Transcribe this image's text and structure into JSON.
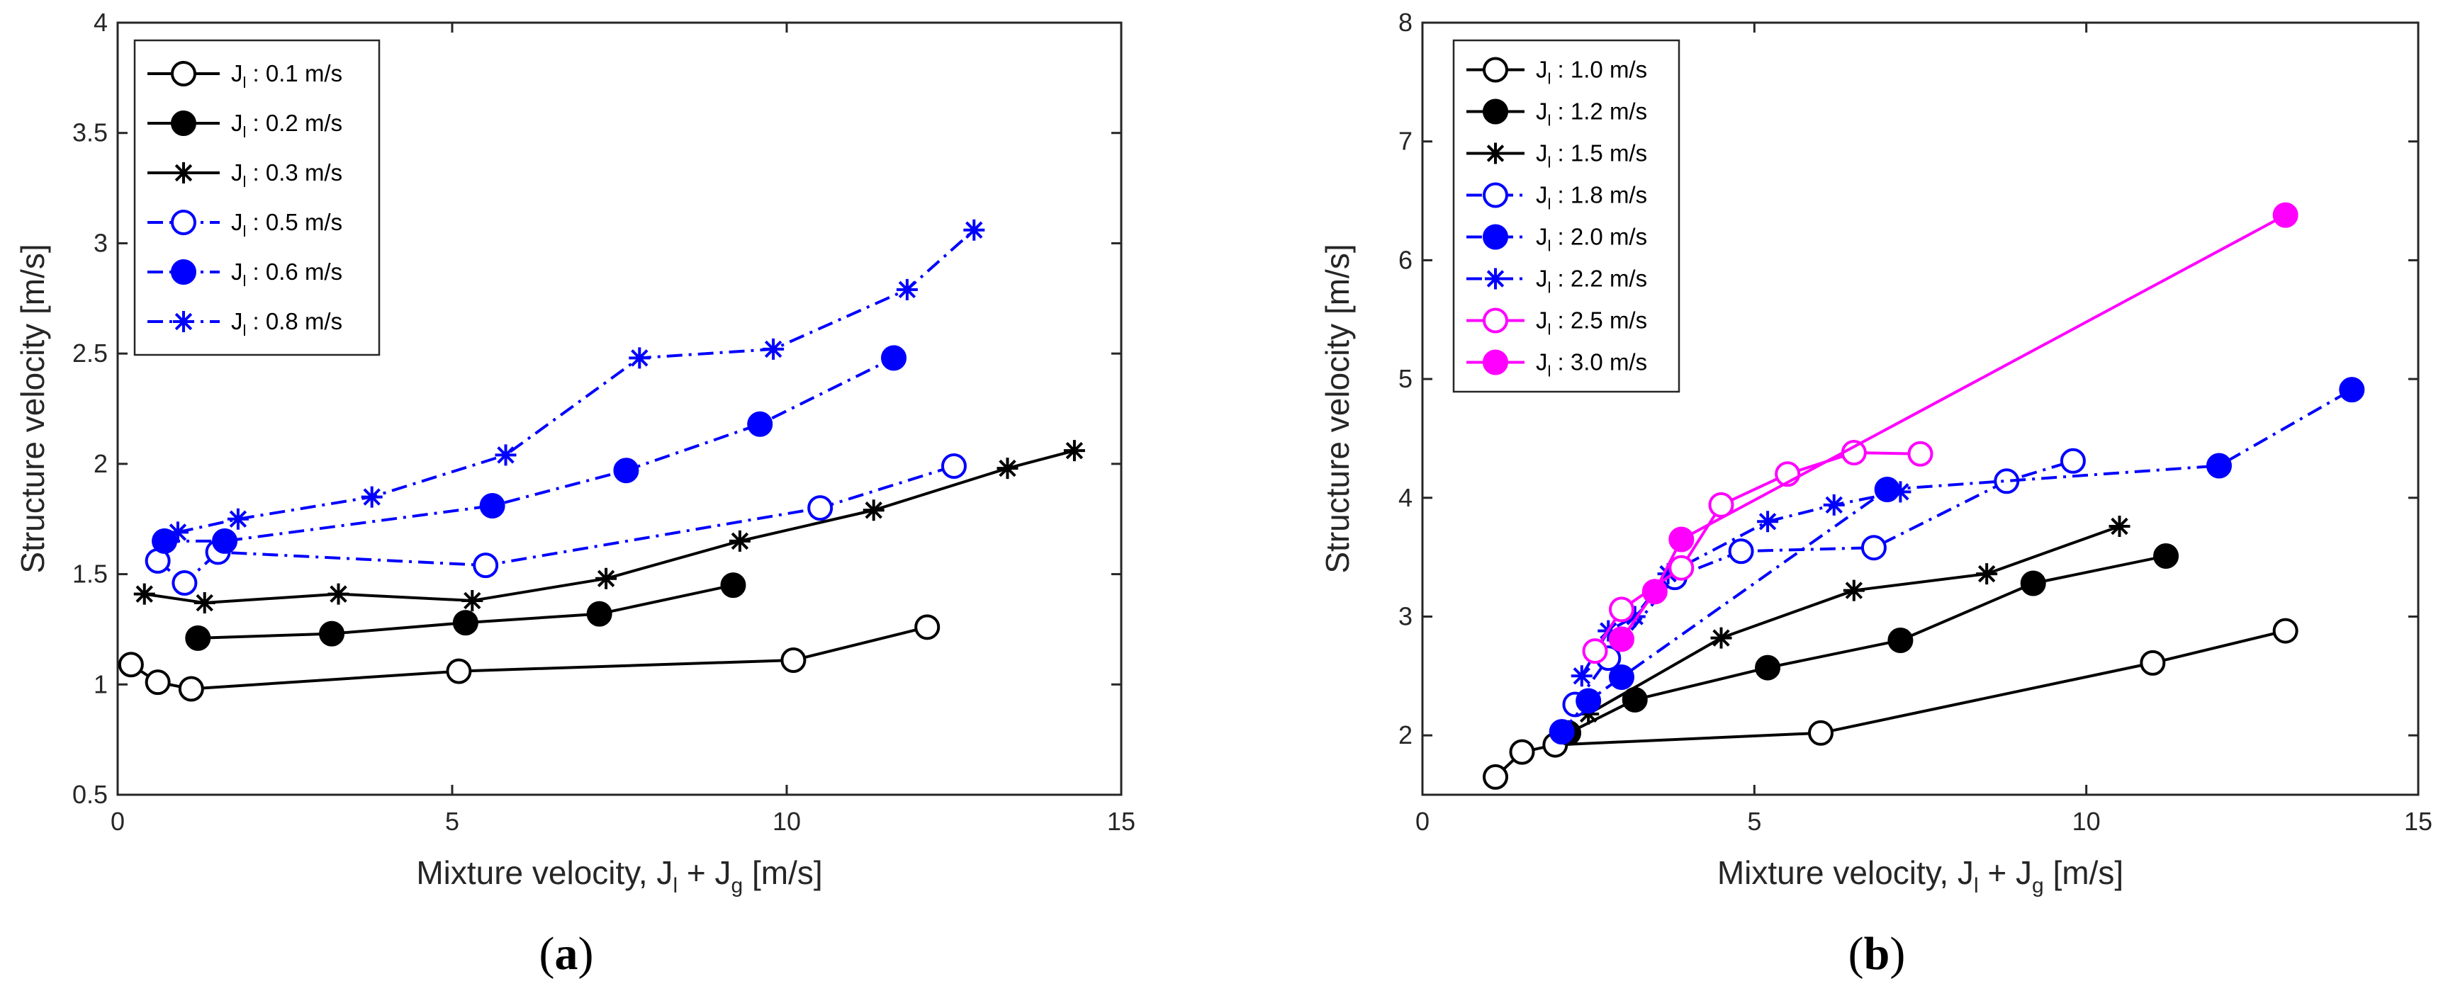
{
  "figure": {
    "panels": [
      "a",
      "b"
    ],
    "captions": [
      "a",
      "b"
    ]
  },
  "chart_data": [
    {
      "type": "line",
      "caption": "a",
      "title": "",
      "xlabel": "Mixture velocity, J_l + J_g [m/s]",
      "xlabel_parts": {
        "t1": "Mixture velocity, J",
        "s1": "l",
        "t2": " + J",
        "s2": "g",
        "t3": " [m/s]"
      },
      "ylabel": "Structure velocity [m/s]",
      "xlim": [
        0,
        15
      ],
      "ylim": [
        0.5,
        4
      ],
      "xticks": [
        "0",
        "5",
        "10",
        "15"
      ],
      "xtick_values": [
        0,
        5,
        10,
        15
      ],
      "yticks": [
        "0.5",
        "1",
        "1.5",
        "2",
        "2.5",
        "3",
        "3.5",
        "4"
      ],
      "ytick_values": [
        0.5,
        1,
        1.5,
        2,
        2.5,
        3,
        3.5,
        4
      ],
      "grid": false,
      "legend_position": "top-left",
      "series": [
        {
          "name": "J_l : 0.1 m/s",
          "sym": "J",
          "sub": "l",
          "label_value": ": 0.1 m/s",
          "color": "#000000",
          "marker": "circle-open",
          "dash": "solid",
          "x": [
            0.2,
            0.6,
            1.1,
            5.1,
            10.1,
            12.1
          ],
          "y": [
            1.09,
            1.01,
            0.98,
            1.06,
            1.11,
            1.26
          ]
        },
        {
          "name": "J_l : 0.2 m/s",
          "sym": "J",
          "sub": "l",
          "label_value": ": 0.2 m/s",
          "color": "#000000",
          "marker": "circle-filled",
          "dash": "solid",
          "x": [
            1.2,
            3.2,
            5.2,
            7.2,
            9.2
          ],
          "y": [
            1.21,
            1.23,
            1.28,
            1.32,
            1.45
          ]
        },
        {
          "name": "J_l : 0.3 m/s",
          "sym": "J",
          "sub": "l",
          "label_value": ": 0.3 m/s",
          "color": "#000000",
          "marker": "star",
          "dash": "solid",
          "x": [
            0.4,
            1.3,
            3.3,
            5.3,
            7.3,
            9.3,
            11.3,
            13.3,
            14.3
          ],
          "y": [
            1.41,
            1.37,
            1.41,
            1.38,
            1.48,
            1.65,
            1.79,
            1.98,
            2.06
          ]
        },
        {
          "name": "J_l : 0.5 m/s",
          "sym": "J",
          "sub": "l",
          "label_value": ": 0.5 m/s",
          "color": "#0000ff",
          "marker": "circle-open",
          "dash": "dashdot",
          "x": [
            0.6,
            1.0,
            1.5,
            5.5,
            10.5,
            12.5
          ],
          "y": [
            1.56,
            1.46,
            1.6,
            1.54,
            1.8,
            1.99
          ]
        },
        {
          "name": "J_l : 0.6 m/s",
          "sym": "J",
          "sub": "l",
          "label_value": ": 0.6 m/s",
          "color": "#0000ff",
          "marker": "circle-filled",
          "dash": "dashdot",
          "x": [
            0.7,
            1.6,
            5.6,
            7.6,
            9.6,
            11.6
          ],
          "y": [
            1.65,
            1.65,
            1.81,
            1.97,
            2.18,
            2.48
          ]
        },
        {
          "name": "J_l : 0.8 m/s",
          "sym": "J",
          "sub": "l",
          "label_value": ": 0.8 m/s",
          "color": "#0000ff",
          "marker": "star",
          "dash": "dashdot",
          "x": [
            0.9,
            1.8,
            3.8,
            5.8,
            7.8,
            9.8,
            11.8,
            12.8
          ],
          "y": [
            1.69,
            1.75,
            1.85,
            2.04,
            2.48,
            2.52,
            2.79,
            3.06
          ]
        }
      ]
    },
    {
      "type": "line",
      "caption": "b",
      "title": "",
      "xlabel": "Mixture velocity, J_l + J_g [m/s]",
      "xlabel_parts": {
        "t1": "Mixture velocity, J",
        "s1": "l",
        "t2": " + J",
        "s2": "g",
        "t3": " [m/s]"
      },
      "ylabel": "Structure velocity [m/s]",
      "xlim": [
        0,
        15
      ],
      "ylim": [
        1.5,
        8
      ],
      "xticks": [
        "0",
        "5",
        "10",
        "15"
      ],
      "xtick_values": [
        0,
        5,
        10,
        15
      ],
      "yticks": [
        "2",
        "3",
        "4",
        "5",
        "6",
        "7",
        "8"
      ],
      "ytick_values": [
        2,
        3,
        4,
        5,
        6,
        7,
        8
      ],
      "grid": false,
      "legend_position": "top-left",
      "series": [
        {
          "name": "J_l : 1.0 m/s",
          "sym": "J",
          "sub": "l",
          "label_value": ": 1.0 m/s",
          "color": "#000000",
          "marker": "circle-open",
          "dash": "solid",
          "x": [
            13.0,
            11.0,
            6.0,
            2.0,
            1.5,
            1.1
          ],
          "y": [
            2.88,
            2.61,
            2.02,
            1.92,
            1.86,
            1.65
          ]
        },
        {
          "name": "J_l : 1.2 m/s",
          "sym": "J",
          "sub": "l",
          "label_value": ": 1.2 m/s",
          "color": "#000000",
          "marker": "circle-filled",
          "dash": "solid",
          "x": [
            2.2,
            3.2,
            5.2,
            7.2,
            9.2,
            11.2
          ],
          "y": [
            2.02,
            2.3,
            2.57,
            2.8,
            3.28,
            3.51
          ]
        },
        {
          "name": "J_l : 1.5 m/s",
          "sym": "J",
          "sub": "l",
          "label_value": ": 1.5 m/s",
          "color": "#000000",
          "marker": "star",
          "dash": "solid",
          "x": [
            2.5,
            4.5,
            6.5,
            8.5,
            10.5
          ],
          "y": [
            2.18,
            2.82,
            3.22,
            3.36,
            3.76
          ]
        },
        {
          "name": "J_l : 1.8 m/s",
          "sym": "J",
          "sub": "l",
          "label_value": ": 1.8 m/s",
          "color": "#0000ff",
          "marker": "circle-open",
          "dash": "dashdot",
          "x": [
            2.3,
            2.8,
            3.8,
            4.8,
            6.8,
            8.8,
            9.8
          ],
          "y": [
            2.26,
            2.65,
            3.33,
            3.55,
            3.58,
            4.14,
            4.31
          ]
        },
        {
          "name": "J_l : 2.0 m/s",
          "sym": "J",
          "sub": "l",
          "label_value": ": 2.0 m/s",
          "color": "#0000ff",
          "marker": "circle-filled",
          "dash": "dashdot",
          "x": [
            2.1,
            2.5,
            3.0,
            7.0,
            12.0,
            14.0
          ],
          "y": [
            2.03,
            2.29,
            2.49,
            4.07,
            4.27,
            4.91
          ]
        },
        {
          "name": "J_l : 2.2 m/s",
          "sym": "J",
          "sub": "l",
          "label_value": ": 2.2 m/s",
          "color": "#0000ff",
          "marker": "star",
          "dash": "dashdot",
          "x": [
            2.4,
            2.8,
            3.2,
            3.7,
            5.2,
            6.2,
            7.2
          ],
          "y": [
            2.5,
            2.88,
            3.0,
            3.36,
            3.8,
            3.94,
            4.05
          ]
        },
        {
          "name": "J_l : 2.5 m/s",
          "sym": "J",
          "sub": "l",
          "label_value": ": 2.5 m/s",
          "color": "#ff00ff",
          "marker": "circle-open",
          "dash": "solid",
          "x": [
            2.6,
            3.0,
            3.9,
            4.5,
            5.5,
            6.5,
            7.5
          ],
          "y": [
            2.71,
            3.06,
            3.41,
            3.94,
            4.2,
            4.38,
            4.37
          ]
        },
        {
          "name": "J_l : 3.0 m/s",
          "sym": "J",
          "sub": "l",
          "label_value": ": 3.0 m/s",
          "color": "#ff00ff",
          "marker": "circle-filled",
          "dash": "solid",
          "x": [
            3.0,
            3.5,
            3.9,
            13.0
          ],
          "y": [
            2.81,
            3.21,
            3.65,
            6.38
          ]
        }
      ]
    }
  ]
}
